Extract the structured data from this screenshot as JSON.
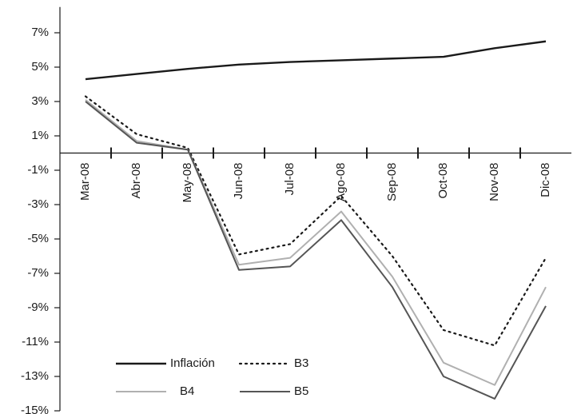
{
  "chart_data": {
    "type": "line",
    "categories": [
      "Mar-08",
      "Abr-08",
      "May-08",
      "Jun-08",
      "Jul-08",
      "Ago-08",
      "Sep-08",
      "Oct-08",
      "Nov-08",
      "Dic-08"
    ],
    "series": [
      {
        "name": "Inflación",
        "color": "#1a1a1a",
        "style": "solid",
        "values": [
          4.3,
          4.6,
          4.9,
          5.15,
          5.3,
          5.4,
          5.5,
          5.6,
          6.1,
          6.5
        ]
      },
      {
        "name": "B3",
        "color": "#1a1a1a",
        "style": "dotted",
        "values": [
          3.3,
          1.1,
          0.3,
          -5.9,
          -5.3,
          -2.5,
          -6.0,
          -10.3,
          -11.2,
          -6.1
        ]
      },
      {
        "name": "B4",
        "color": "#b0b0b0",
        "style": "solid",
        "values": [
          3.1,
          0.7,
          0.2,
          -6.5,
          -6.1,
          -3.4,
          -7.2,
          -12.2,
          -13.5,
          -7.8
        ]
      },
      {
        "name": "B5",
        "color": "#555555",
        "style": "double",
        "values": [
          3.0,
          0.6,
          0.2,
          -6.8,
          -6.6,
          -3.9,
          -7.8,
          -13.0,
          -14.3,
          -8.9
        ]
      }
    ],
    "ylim": [
      -15,
      8.5
    ],
    "yticks": [
      {
        "value": -15,
        "label": "-15%"
      },
      {
        "value": -13,
        "label": "-13%"
      },
      {
        "value": -11,
        "label": "-11%"
      },
      {
        "value": -9,
        "label": "-9%"
      },
      {
        "value": -7,
        "label": "-7%"
      },
      {
        "value": -5,
        "label": "-5%"
      },
      {
        "value": -3,
        "label": "-3%"
      },
      {
        "value": -1,
        "label": "-1%"
      },
      {
        "value": 1,
        "label": "1%"
      },
      {
        "value": 3,
        "label": "3%"
      },
      {
        "value": 5,
        "label": "5%"
      },
      {
        "value": 7,
        "label": "7%"
      }
    ],
    "grid": false,
    "legend": "bottom-left"
  }
}
